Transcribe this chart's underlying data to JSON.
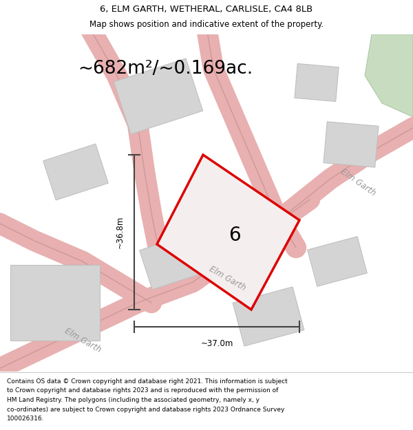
{
  "title_line1": "6, ELM GARTH, WETHERAL, CARLISLE, CA4 8LB",
  "title_line2": "Map shows position and indicative extent of the property.",
  "area_text": "~682m²/~0.169ac.",
  "label_6": "6",
  "dim_height": "~36.8m",
  "dim_width": "~37.0m",
  "footer_lines": [
    "Contains OS data © Crown copyright and database right 2021. This information is subject",
    "to Crown copyright and database rights 2023 and is reproduced with the permission of",
    "HM Land Registry. The polygons (including the associated geometry, namely x, y",
    "co-ordinates) are subject to Crown copyright and database rights 2023 Ordnance Survey",
    "100026316."
  ],
  "map_bg": "#f2f0ee",
  "plot_outline_color": "#dd0000",
  "road_color": "#e8b0b0",
  "road_fill": "#e8e0e0",
  "building_color": "#d4d4d4",
  "building_edge": "#c0c0c0",
  "dim_line_color": "#444444",
  "green_color": "#c8ddc0",
  "white": "#ffffff",
  "divider_color": "#cccccc",
  "road_label_color": "#999999",
  "title_fontsize": 9.5,
  "subtitle_fontsize": 8.5,
  "area_fontsize": 19,
  "label_fontsize": 20,
  "dim_fontsize": 8.5,
  "road_label_fontsize": 8.5,
  "footer_fontsize": 6.5
}
